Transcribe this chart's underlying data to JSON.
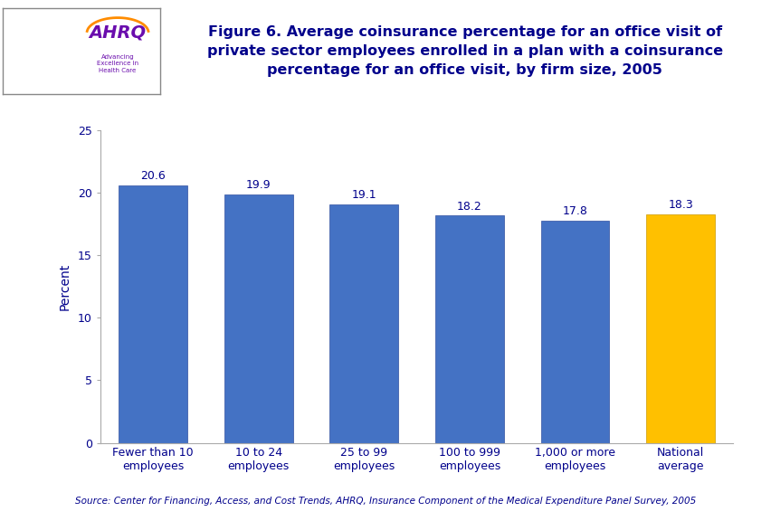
{
  "categories": [
    "Fewer than 10\nemployees",
    "10 to 24\nemployees",
    "25 to 99\nemployees",
    "100 to 999\nemployees",
    "1,000 or more\nemployees",
    "National\naverage"
  ],
  "values": [
    20.6,
    19.9,
    19.1,
    18.2,
    17.8,
    18.3
  ],
  "bar_colors": [
    "#4472C4",
    "#4472C4",
    "#4472C4",
    "#4472C4",
    "#4472C4",
    "#FFC000"
  ],
  "bar_edge_colors": [
    "#2F4F9F",
    "#2F4F9F",
    "#2F4F9F",
    "#2F4F9F",
    "#2F4F9F",
    "#CC9900"
  ],
  "ylabel": "Percent",
  "ylim": [
    0,
    25
  ],
  "yticks": [
    0,
    5,
    10,
    15,
    20,
    25
  ],
  "title_text": "Figure 6. Average coinsurance percentage for an office visit of\nprivate sector employees enrolled in a plan with a coinsurance\npercentage for an office visit, by firm size, 2005",
  "title_color": "#00008B",
  "source_text": "Source: Center for Financing, Access, and Cost Trends, AHRQ, Insurance Component of the Medical Expenditure Panel Survey, 2005",
  "bg_color": "#FFFFFF",
  "tick_label_color": "#00008B",
  "value_label_color": "#00008B",
  "ylabel_color": "#00008B",
  "header_dark_color": "#00008B",
  "header_mid_color": "#0000CD",
  "logo_bg_left": "#4A90C8",
  "logo_bg_right": "#FFFFFF",
  "source_color": "#00008B"
}
